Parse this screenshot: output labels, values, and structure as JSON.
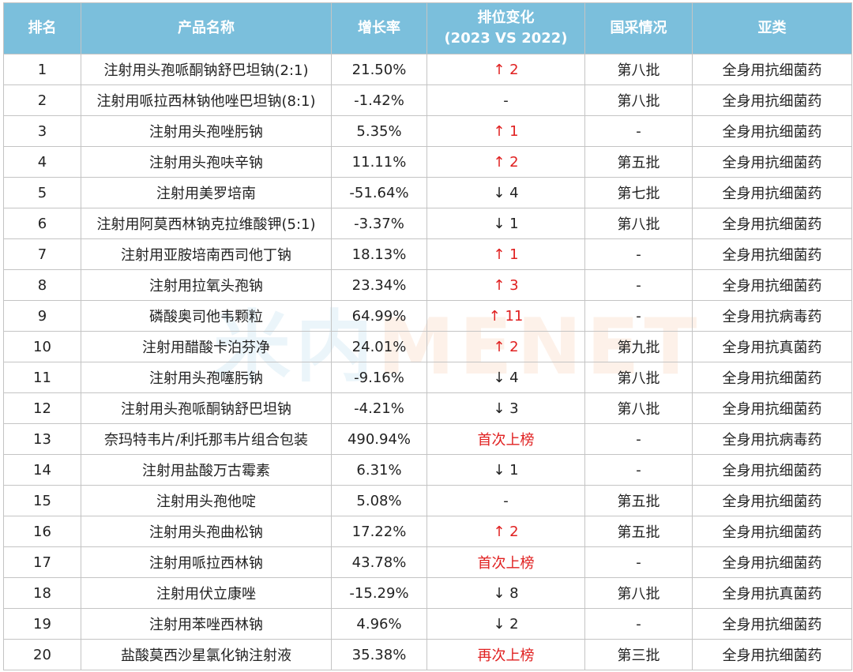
{
  "headers": {
    "rank": "排名",
    "name": "产品名称",
    "growth": "增长率",
    "change_line1": "排位变化",
    "change_line2": "(2023 VS 2022)",
    "procurement": "国采情况",
    "subclass": "亚类"
  },
  "rows": [
    {
      "rank": "1",
      "name": "注射用头孢哌酮钠舒巴坦钠(2:1)",
      "growth": "21.50%",
      "change": "↑ 2",
      "change_type": "up",
      "procurement": "第八批",
      "subclass": "全身用抗细菌药"
    },
    {
      "rank": "2",
      "name": "注射用哌拉西林钠他唑巴坦钠(8:1)",
      "growth": "-1.42%",
      "change": "-",
      "change_type": "none",
      "procurement": "第八批",
      "subclass": "全身用抗细菌药"
    },
    {
      "rank": "3",
      "name": "注射用头孢唑肟钠",
      "growth": "5.35%",
      "change": "↑ 1",
      "change_type": "up",
      "procurement": "-",
      "subclass": "全身用抗细菌药"
    },
    {
      "rank": "4",
      "name": "注射用头孢呋辛钠",
      "growth": "11.11%",
      "change": "↑ 2",
      "change_type": "up",
      "procurement": "第五批",
      "subclass": "全身用抗细菌药"
    },
    {
      "rank": "5",
      "name": "注射用美罗培南",
      "growth": "-51.64%",
      "change": "↓ 4",
      "change_type": "down",
      "procurement": "第七批",
      "subclass": "全身用抗细菌药"
    },
    {
      "rank": "6",
      "name": "注射用阿莫西林钠克拉维酸钾(5:1)",
      "growth": "-3.37%",
      "change": "↓ 1",
      "change_type": "down",
      "procurement": "第八批",
      "subclass": "全身用抗细菌药"
    },
    {
      "rank": "7",
      "name": "注射用亚胺培南西司他丁钠",
      "growth": "18.13%",
      "change": "↑ 1",
      "change_type": "up",
      "procurement": "-",
      "subclass": "全身用抗细菌药"
    },
    {
      "rank": "8",
      "name": "注射用拉氧头孢钠",
      "growth": "23.34%",
      "change": "↑ 3",
      "change_type": "up",
      "procurement": "-",
      "subclass": "全身用抗细菌药"
    },
    {
      "rank": "9",
      "name": "磷酸奥司他韦颗粒",
      "growth": "64.99%",
      "change": "↑ 11",
      "change_type": "up",
      "procurement": "-",
      "subclass": "全身用抗病毒药"
    },
    {
      "rank": "10",
      "name": "注射用醋酸卡泊芬净",
      "growth": "24.01%",
      "change": "↑ 2",
      "change_type": "up",
      "procurement": "第九批",
      "subclass": "全身用抗真菌药"
    },
    {
      "rank": "11",
      "name": "注射用头孢噻肟钠",
      "growth": "-9.16%",
      "change": "↓ 4",
      "change_type": "down",
      "procurement": "第八批",
      "subclass": "全身用抗细菌药"
    },
    {
      "rank": "12",
      "name": "注射用头孢哌酮钠舒巴坦钠",
      "growth": "-4.21%",
      "change": "↓ 3",
      "change_type": "down",
      "procurement": "第八批",
      "subclass": "全身用抗细菌药"
    },
    {
      "rank": "13",
      "name": "奈玛特韦片/利托那韦片组合包装",
      "growth": "490.94%",
      "change": "首次上榜",
      "change_type": "badge",
      "procurement": "-",
      "subclass": "全身用抗病毒药"
    },
    {
      "rank": "14",
      "name": "注射用盐酸万古霉素",
      "growth": "6.31%",
      "change": "↓ 1",
      "change_type": "down",
      "procurement": "-",
      "subclass": "全身用抗细菌药"
    },
    {
      "rank": "15",
      "name": "注射用头孢他啶",
      "growth": "5.08%",
      "change": "-",
      "change_type": "none",
      "procurement": "第五批",
      "subclass": "全身用抗细菌药"
    },
    {
      "rank": "16",
      "name": "注射用头孢曲松钠",
      "growth": "17.22%",
      "change": "↑ 2",
      "change_type": "up",
      "procurement": "第五批",
      "subclass": "全身用抗细菌药"
    },
    {
      "rank": "17",
      "name": "注射用哌拉西林钠",
      "growth": "43.78%",
      "change": "首次上榜",
      "change_type": "badge",
      "procurement": "-",
      "subclass": "全身用抗细菌药"
    },
    {
      "rank": "18",
      "name": "注射用伏立康唑",
      "growth": "-15.29%",
      "change": "↓ 8",
      "change_type": "down",
      "procurement": "第八批",
      "subclass": "全身用抗真菌药"
    },
    {
      "rank": "19",
      "name": "注射用苯唑西林钠",
      "growth": "4.96%",
      "change": "↓ 2",
      "change_type": "down",
      "procurement": "-",
      "subclass": "全身用抗细菌药"
    },
    {
      "rank": "20",
      "name": "盐酸莫西沙星氯化钠注射液",
      "growth": "35.38%",
      "change": "再次上榜",
      "change_type": "badge",
      "procurement": "第三批",
      "subclass": "全身用抗细菌药"
    }
  ],
  "watermark": {
    "cn": "米内",
    "en": "MENET"
  },
  "colors": {
    "header_bg": "#7bbfdc",
    "header_text": "#ffffff",
    "up": "#e02020",
    "badge": "#e02020",
    "border": "#c4c4c4"
  }
}
